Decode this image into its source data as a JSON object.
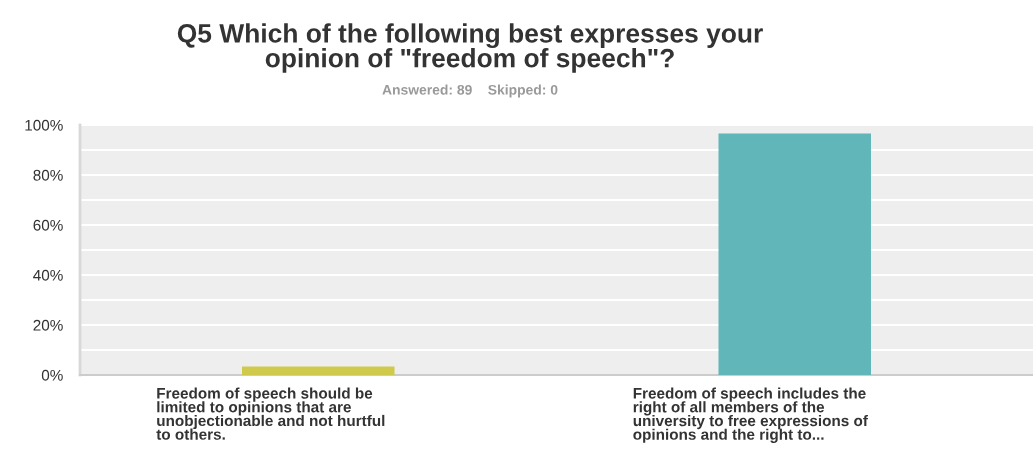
{
  "chart_data": {
    "type": "bar",
    "title": "Q5 Which of the following best expresses your opinion of \"freedom of speech\"?",
    "subtitle": "Answered: 89    Skipped: 0",
    "categories": [
      "Freedom of speech should be limited to opinions that are unobjectionable and not hurtful to others.",
      "Freedom of speech includes the right of all members of the university to free expressions of opinions and the right to..."
    ],
    "values": [
      3.4,
      96.6
    ],
    "colors": [
      "#cfca4b",
      "#60b6b8"
    ],
    "ylim": [
      0,
      100
    ],
    "yticks": [
      {
        "value": 0,
        "label": "0%"
      },
      {
        "value": 10,
        "label": null
      },
      {
        "value": 20,
        "label": "20%"
      },
      {
        "value": 30,
        "label": null
      },
      {
        "value": 40,
        "label": "40%"
      },
      {
        "value": 50,
        "label": null
      },
      {
        "value": 60,
        "label": "60%"
      },
      {
        "value": 70,
        "label": null
      },
      {
        "value": 80,
        "label": "80%"
      },
      {
        "value": 90,
        "label": null
      },
      {
        "value": 100,
        "label": "100%"
      }
    ],
    "grid": "y"
  }
}
